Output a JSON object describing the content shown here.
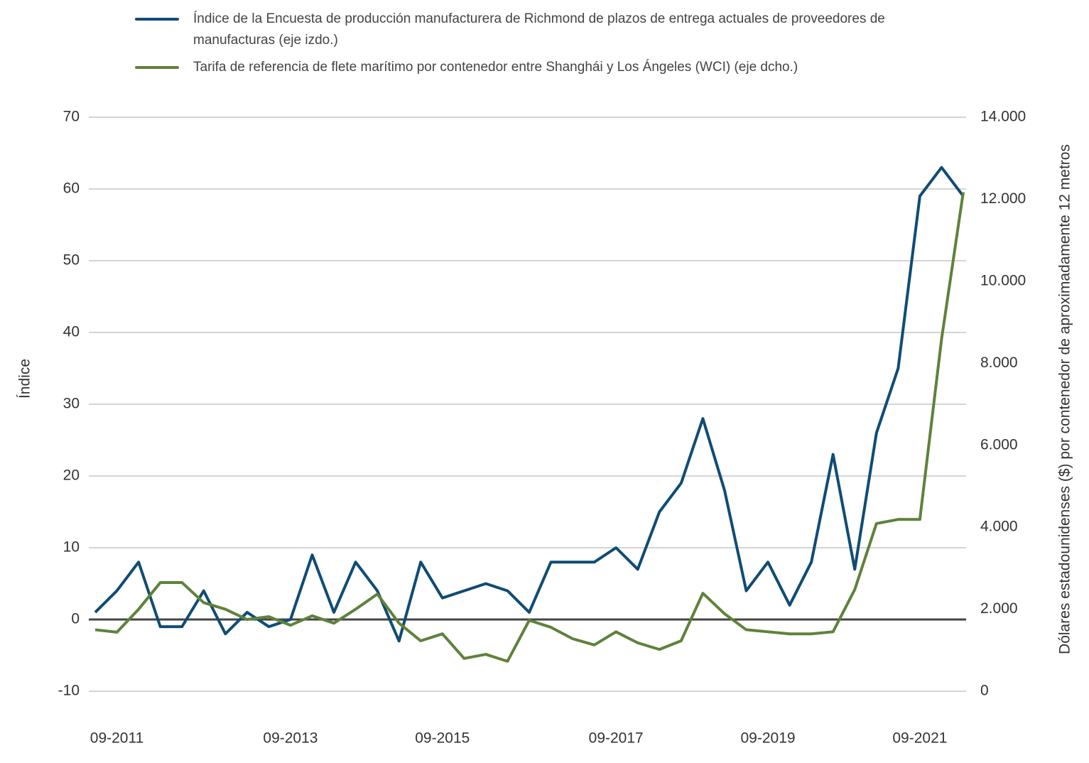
{
  "chart_data": {
    "type": "line",
    "categories": [
      null,
      "09-2011",
      null,
      null,
      null,
      null,
      null,
      null,
      null,
      "09-2013",
      null,
      null,
      null,
      null,
      null,
      null,
      "09-2015",
      null,
      null,
      null,
      null,
      null,
      null,
      null,
      "09-2017",
      null,
      null,
      null,
      null,
      null,
      null,
      "09-2019",
      null,
      null,
      null,
      null,
      null,
      null,
      "09-2021",
      null,
      null
    ],
    "series": [
      {
        "name": "Índice de la Encuesta de producción manufacturera de Richmond de plazos de entrega actuales de proveedores de manufacturas (eje izdo.)",
        "color": "#0f4c75",
        "values": [
          1,
          4,
          8,
          -1,
          -1,
          4,
          -2,
          1,
          -1,
          0,
          9,
          1,
          8,
          4,
          -3,
          8,
          3,
          4,
          5,
          4,
          1,
          8,
          8,
          8,
          10,
          7,
          15,
          19,
          28,
          18,
          4,
          8,
          2,
          8,
          23,
          7,
          26,
          35,
          59,
          63,
          59
        ]
      },
      {
        "name": "Tarifa de referencia de flete marítimo por contenedor entre Shanghái y Los Ángeles (WCI) (eje dcho.)",
        "color": "#5e823a",
        "axis": "y2",
        "values": [
          1500,
          1440,
          2000,
          2650,
          2650,
          2160,
          2000,
          1750,
          1820,
          1610,
          1840,
          1660,
          2000,
          2370,
          1660,
          1230,
          1400,
          800,
          900,
          730,
          1730,
          1560,
          1280,
          1130,
          1450,
          1180,
          1020,
          1230,
          2390,
          1890,
          1500,
          1450,
          1400,
          1400,
          1450,
          2480,
          4090,
          4190,
          4190,
          8590,
          12170
        ]
      }
    ],
    "ylabel": "Índice",
    "y2label": "Dólares estadounidenses ($) por contenedor de aproximadamente 12 metros",
    "ylim": [
      -10,
      70
    ],
    "yticks": [
      -10,
      0,
      10,
      20,
      30,
      40,
      50,
      60,
      70
    ],
    "y2lim": [
      0,
      14000
    ],
    "y2ticks": [
      0,
      {
        "value": 2000,
        "label": "2.000"
      },
      {
        "value": 4000,
        "label": "4.000"
      },
      {
        "value": 6000,
        "label": "6.000"
      },
      {
        "value": 8000,
        "label": "8.000"
      },
      {
        "value": 10000,
        "label": "10.000"
      },
      {
        "value": 12000,
        "label": "12.000"
      },
      {
        "value": 14000,
        "label": "14.000"
      }
    ],
    "grid": true
  }
}
